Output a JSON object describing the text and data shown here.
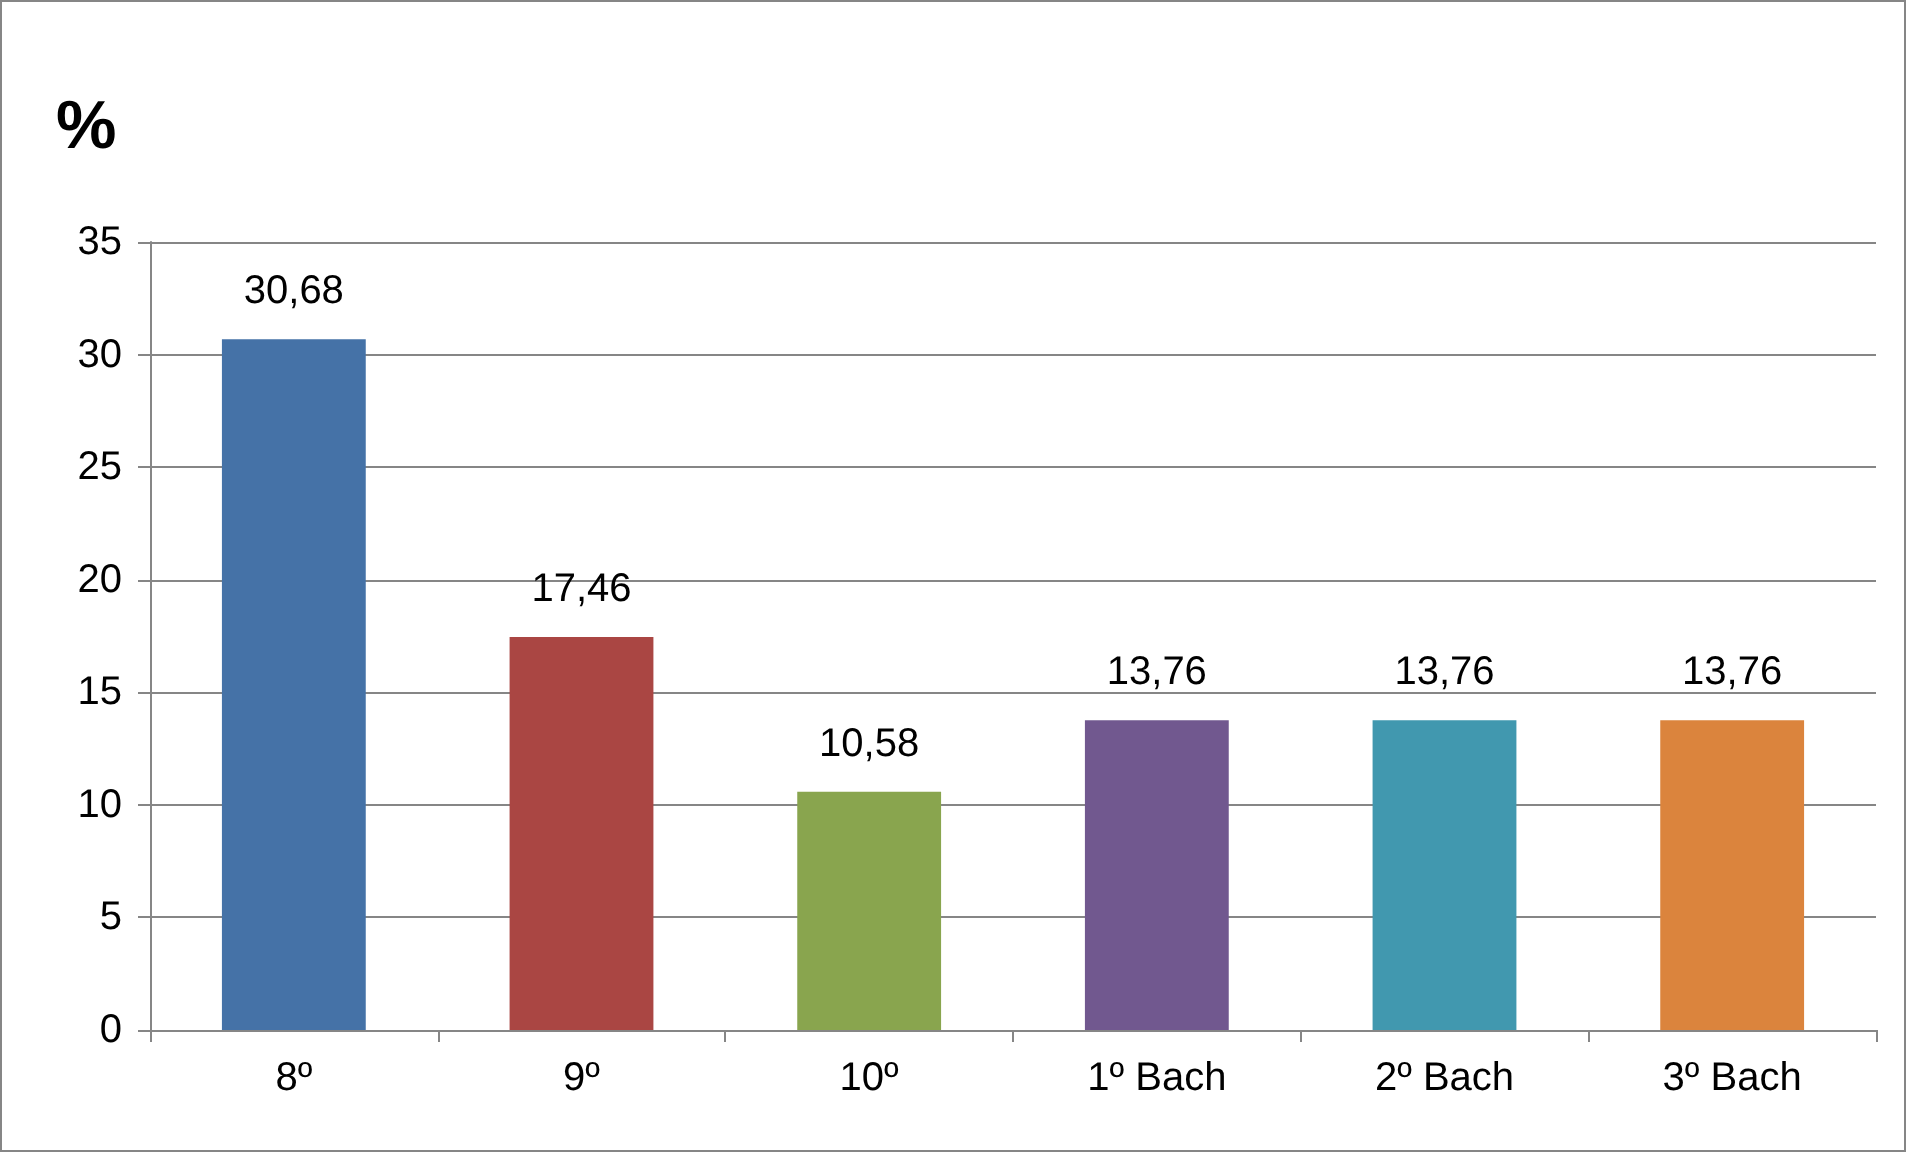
{
  "chart_data": {
    "type": "bar",
    "ylabel": "%",
    "categories": [
      "8º",
      "9º",
      "10º",
      "1º Bach",
      "2º Bach",
      "3º Bach"
    ],
    "values": [
      30.68,
      17.46,
      10.58,
      13.76,
      13.76,
      13.76
    ],
    "colors": [
      "#4572a7",
      "#aa4643",
      "#89a54e",
      "#71588f",
      "#4198af",
      "#db843d"
    ],
    "value_labels": [
      "30,68",
      "17,46",
      "10,58",
      "13,76",
      "13,76",
      "13,76"
    ],
    "ylim": [
      0,
      35
    ],
    "yticks": [
      0,
      5,
      10,
      15,
      20,
      25,
      30,
      35
    ],
    "grid": "y"
  }
}
